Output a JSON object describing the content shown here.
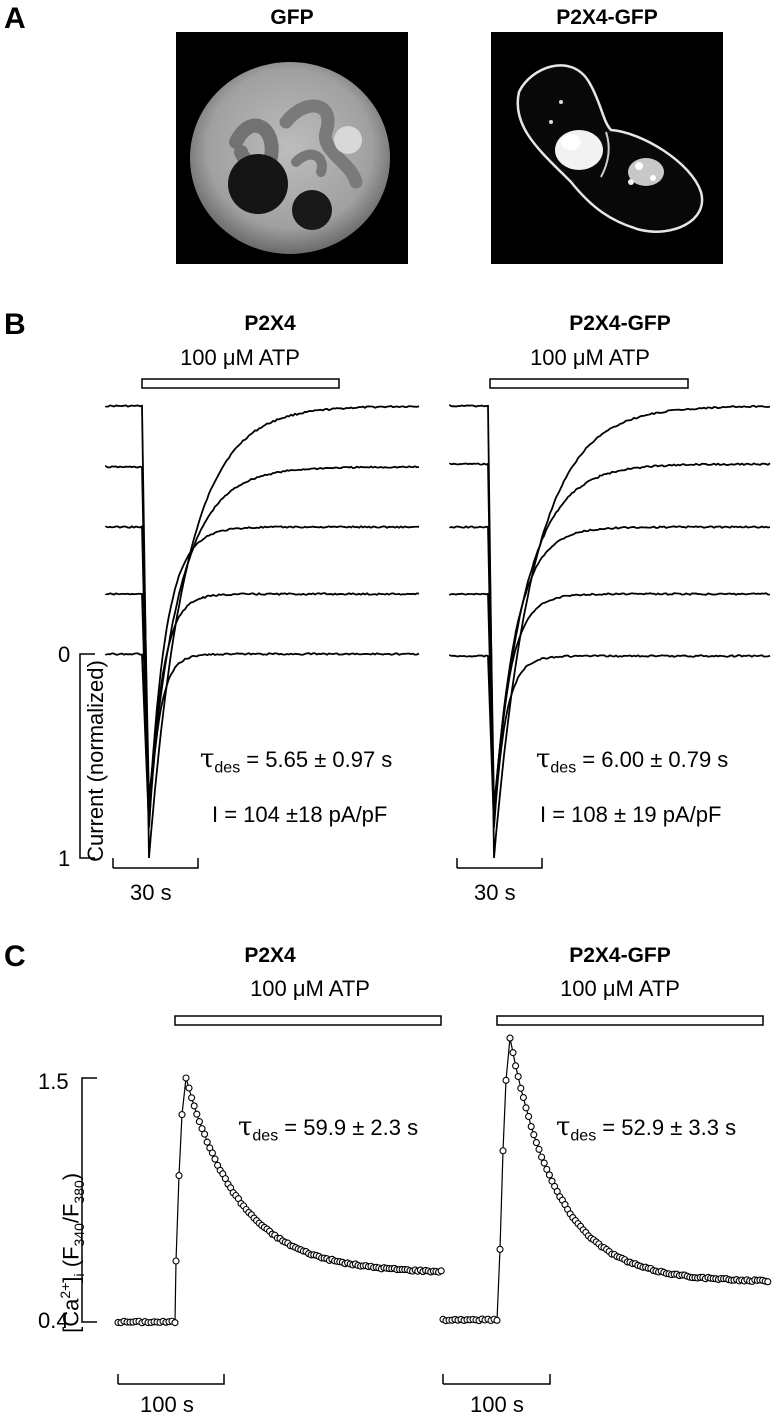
{
  "figure": {
    "panel_a": {
      "letter": "A",
      "images": [
        {
          "label": "GFP"
        },
        {
          "label": "P2X4-GFP"
        }
      ]
    },
    "panel_b": {
      "letter": "B",
      "y_axis_label": "Current (normalized)",
      "y_ticks": [
        "0",
        "1"
      ],
      "scale_bar": "30 s",
      "panels": [
        {
          "title": "P2X4",
          "stimulus": "100 μM ATP",
          "tau_text": " = 5.65 ± 0.97 s",
          "current_text": "I = 104 ±18 pA/pF"
        },
        {
          "title": "P2X4-GFP",
          "stimulus": "100 μM ATP",
          "tau_text": " = 6.00 ± 0.79 s",
          "current_text": "I = 108 ± 19 pA/pF"
        }
      ]
    },
    "panel_c": {
      "letter": "C",
      "y_axis_label": "[Ca2+]i (F340/F380)",
      "y_ticks": [
        "1.5",
        "0.4"
      ],
      "scale_bar": "100 s",
      "panels": [
        {
          "title": "P2X4",
          "stimulus": "100 μM ATP",
          "tau_text": " = 59.9 ± 2.3 s"
        },
        {
          "title": "P2X4-GFP",
          "stimulus": "100 μM ATP",
          "tau_text": " = 52.9 ± 3.3 s"
        }
      ]
    },
    "tau_symbol": "τ",
    "tau_subscript": "des"
  },
  "chart_data": [
    {
      "type": "line",
      "title": "P2X4",
      "ylabel": "Current (normalized)",
      "ylim": [
        0,
        1
      ],
      "series": [
        {
          "peak": 1.0,
          "tau_s": 5.65
        },
        {
          "peak": 0.72,
          "tau_s": 4.8
        },
        {
          "peak": 0.8,
          "tau_s": 2.6
        },
        {
          "peak": 0.85,
          "tau_s": 2.0
        },
        {
          "peak": 0.85,
          "tau_s": 1.6
        }
      ]
    },
    {
      "type": "line",
      "title": "P2X4-GFP",
      "ylabel": "Current (normalized)",
      "ylim": [
        0,
        1
      ],
      "series": [
        {
          "peak": 1.0,
          "tau_s": 6.0
        },
        {
          "peak": 0.75,
          "tau_s": 4.9
        },
        {
          "peak": 0.8,
          "tau_s": 3.3
        },
        {
          "peak": 0.8,
          "tau_s": 2.4
        },
        {
          "peak": 0.85,
          "tau_s": 1.8
        }
      ]
    },
    {
      "type": "scatter",
      "title": "P2X4",
      "ylabel": "[Ca2+]i (F340/F380)",
      "ylim": [
        0.4,
        1.5
      ],
      "baseline": 0.4,
      "peak": 1.5,
      "plateau": 0.62,
      "tau_s": 59.9
    },
    {
      "type": "scatter",
      "title": "P2X4-GFP",
      "ylabel": "[Ca2+]i (F340/F380)",
      "ylim": [
        0.4,
        1.5
      ],
      "baseline": 0.41,
      "peak": 1.68,
      "plateau": 0.58,
      "tau_s": 52.9
    }
  ]
}
